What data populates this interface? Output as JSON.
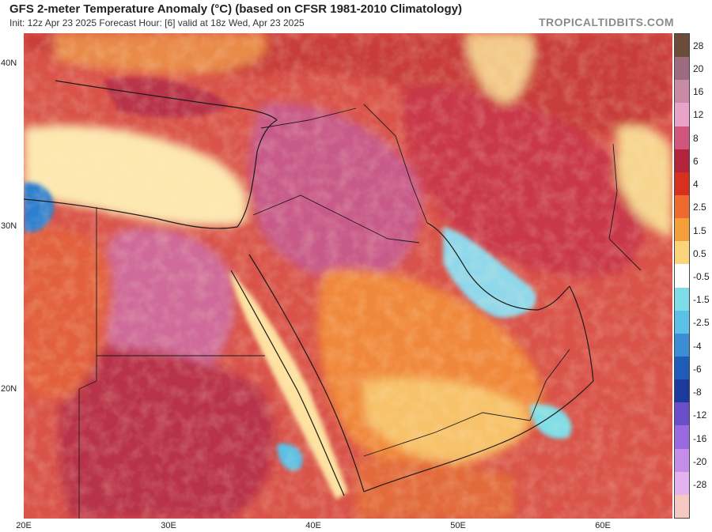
{
  "header": {
    "title": "GFS 2-meter Temperature Anomaly (°C) (based on CFSR 1981-2010 Climatology)",
    "subtitle": "Init: 12z Apr 23 2025   Forecast Hour: [6]   valid at 18z Wed, Apr 23 2025",
    "watermark": "TROPICALTIDBITS.COM"
  },
  "axes": {
    "latitude_labels": [
      "40N",
      "30N",
      "20N"
    ],
    "longitude_labels": [
      "20E",
      "30E",
      "40E",
      "50E",
      "60E"
    ]
  },
  "colorbar": {
    "labels": [
      "28",
      "20",
      "16",
      "12",
      "8",
      "6",
      "4",
      "2.5",
      "1.5",
      "0.5",
      "-0.5",
      "-1.5",
      "-2.5",
      "-4",
      "-6",
      "-8",
      "-12",
      "-16",
      "-20",
      "-28"
    ],
    "colors": [
      "#6b4c3b",
      "#9c6b7f",
      "#c98aa6",
      "#e9a3c9",
      "#d2557e",
      "#b3243a",
      "#d7301f",
      "#ef6a2f",
      "#f59f3a",
      "#fad47a",
      "#ffffff",
      "#7fdde8",
      "#5cc1e6",
      "#3b8ed6",
      "#1f5cb8",
      "#1a3a9c",
      "#6a4fc9",
      "#9a6be0",
      "#c48ee8",
      "#e4b3ee",
      "#f5c8c2"
    ]
  },
  "map_colors": {
    "background_warm": "#d9534a",
    "hot_core": "#b8304a",
    "pink_core": "#d66a9e",
    "orange": "#f08a3a",
    "pale": "#fde8b0",
    "sea_cool": "#8fd8ec",
    "deep_cold": "#2f7fd0"
  }
}
